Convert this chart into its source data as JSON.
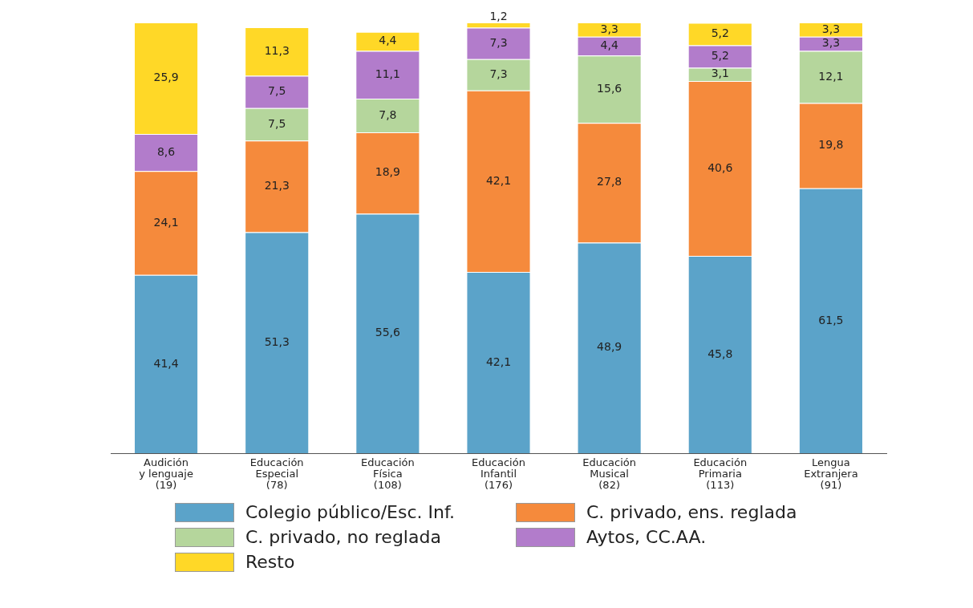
{
  "chart_data": {
    "type": "bar",
    "stacked": true,
    "legend": "bottom",
    "grid": false,
    "categories": [
      "Audición\ny lenguaje\n(19)",
      "Educación\nEspecial\n(78)",
      "Educación\nFísica\n(108)",
      "Educación\nInfantil\n(176)",
      "Educación\nMusical\n(82)",
      "Educación\nPrimaria\n(113)",
      "Lengua\nExtranjera\n(91)"
    ],
    "series": [
      {
        "name": "Colegio público/Esc. Inf.",
        "color": "#5ba3c9",
        "values": [
          41.4,
          51.3,
          55.6,
          42.1,
          48.9,
          45.8,
          61.5
        ],
        "value_labels": [
          "41,4",
          "51,3",
          "55,6",
          "42,1",
          "48,9",
          "45,8",
          "61,5"
        ]
      },
      {
        "name": "C. privado, ens. reglada",
        "color": "#f58a3c",
        "values": [
          24.1,
          21.3,
          18.9,
          42.1,
          27.8,
          40.6,
          19.8
        ],
        "value_labels": [
          "24,1",
          "21,3",
          "18,9",
          "42,1",
          "27,8",
          "40,6",
          "19,8"
        ]
      },
      {
        "name": "C. privado, no reglada",
        "color": "#b5d69c",
        "values": [
          null,
          7.5,
          7.8,
          7.3,
          15.6,
          3.1,
          12.1
        ],
        "value_labels": [
          null,
          "7,5",
          "7,8",
          "7,3",
          "15,6",
          "3,1",
          "12,1"
        ]
      },
      {
        "name": "Aytos, CC.AA.",
        "color": "#b27ccb",
        "values": [
          8.6,
          7.5,
          11.1,
          7.3,
          4.4,
          5.2,
          3.3
        ],
        "value_labels": [
          "8,6",
          "7,5",
          "11,1",
          "7,3",
          "4,4",
          "5,2",
          "3,3"
        ]
      },
      {
        "name": "Resto",
        "color": "#ffd827",
        "values": [
          25.9,
          11.3,
          4.4,
          1.2,
          3.3,
          5.2,
          3.3
        ],
        "value_labels": [
          "25,9",
          "11,3",
          "4,4",
          "1,2",
          "3,3",
          "5,2",
          "3,3"
        ]
      }
    ]
  }
}
